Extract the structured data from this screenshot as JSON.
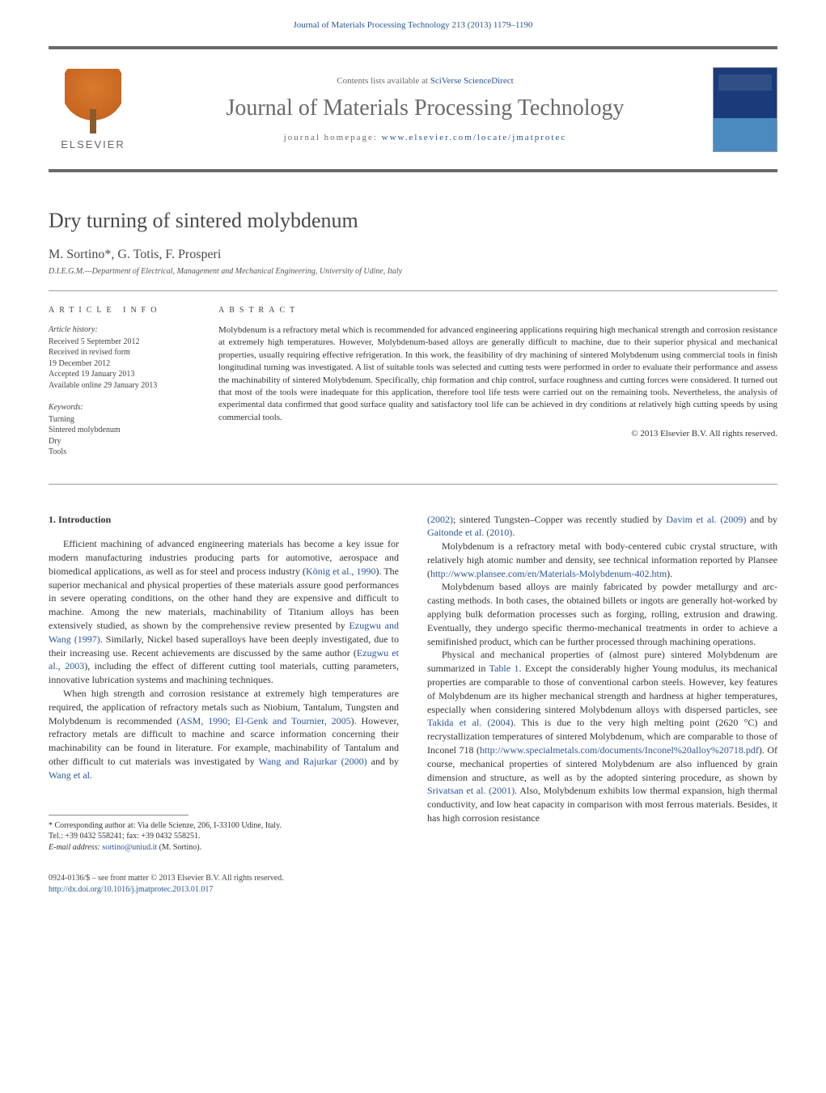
{
  "header": {
    "citation": "Journal of Materials Processing Technology 213 (2013) 1179–1190"
  },
  "masthead": {
    "publisher_name": "ELSEVIER",
    "contents_prefix": "Contents lists available at ",
    "contents_link": "SciVerse ScienceDirect",
    "journal_name": "Journal of Materials Processing Technology",
    "homepage_label": "journal homepage: ",
    "homepage_url": "www.elsevier.com/locate/jmatprotec"
  },
  "article": {
    "title": "Dry turning of sintered molybdenum",
    "authors": "M. Sortino*, G. Totis, F. Prosperi",
    "affiliation": "D.I.E.G.M.—Department of Electrical, Management and Mechanical Engineering, University of Udine, Italy"
  },
  "info": {
    "heading": "ARTICLE INFO",
    "history_label": "Article history:",
    "received": "Received 5 September 2012",
    "revised1": "Received in revised form",
    "revised2": "19 December 2012",
    "accepted": "Accepted 19 January 2013",
    "online": "Available online 29 January 2013",
    "keywords_label": "Keywords:",
    "kw1": "Turning",
    "kw2": "Sintered molybdenum",
    "kw3": "Dry",
    "kw4": "Tools"
  },
  "abstract": {
    "heading": "ABSTRACT",
    "text": "Molybdenum is a refractory metal which is recommended for advanced engineering applications requiring high mechanical strength and corrosion resistance at extremely high temperatures. However, Molybdenum-based alloys are generally difficult to machine, due to their superior physical and mechanical properties, usually requiring effective refrigeration. In this work, the feasibility of dry machining of sintered Molybdenum using commercial tools in finish longitudinal turning was investigated. A list of suitable tools was selected and cutting tests were performed in order to evaluate their performance and assess the machinability of sintered Molybdenum. Specifically, chip formation and chip control, surface roughness and cutting forces were considered. It turned out that most of the tools were inadequate for this application, therefore tool life tests were carried out on the remaining tools. Nevertheless, the analysis of experimental data confirmed that good surface quality and satisfactory tool life can be achieved in dry conditions at relatively high cutting speeds by using commercial tools.",
    "copyright": "© 2013 Elsevier B.V. All rights reserved."
  },
  "body": {
    "section_number": "1.",
    "section_title": "Introduction",
    "left_para1_a": "Efficient machining of advanced engineering materials has become a key issue for modern manufacturing industries producing parts for automotive, aerospace and biomedical applications, as well as for steel and process industry (",
    "left_para1_ref1": "König et al., 1990",
    "left_para1_b": "). The superior mechanical and physical properties of these materials assure good performances in severe operating conditions, on the other hand they are expensive and difficult to machine. Among the new materials, machinability of Titanium alloys has been extensively studied, as shown by the comprehensive review presented by ",
    "left_para1_ref2": "Ezugwu and Wang (1997)",
    "left_para1_c": ". Similarly, Nickel based superalloys have been deeply investigated, due to their increasing use. Recent achievements are discussed by the same author (",
    "left_para1_ref3": "Ezugwu et al., 2003",
    "left_para1_d": "), including the effect of different cutting tool materials, cutting parameters, innovative lubrication systems and machining techniques.",
    "left_para2_a": "When high strength and corrosion resistance at extremely high temperatures are required, the application of refractory metals such as Niobium, Tantalum, Tungsten and Molybdenum is recommended (",
    "left_para2_ref1": "ASM, 1990; El-Genk and Tournier, 2005",
    "left_para2_b": "). However, refractory metals are difficult to machine and scarce information concerning their machinability can be found in literature. For example, machinability of Tantalum and other difficult to cut materials was investigated by ",
    "left_para2_ref2": "Wang and Rajurkar (2000)",
    "left_para2_c": " and by ",
    "left_para2_ref3": "Wang et al.",
    "right_para1_a": "(2002)",
    "right_para1_b": "; sintered Tungsten–Copper was recently studied by ",
    "right_para1_ref1": "Davim et al. (2009)",
    "right_para1_c": " and by ",
    "right_para1_ref2": "Gaitonde et al. (2010)",
    "right_para1_d": ".",
    "right_para2_a": "Molybdenum is a refractory metal with body-centered cubic crystal structure, with relatively high atomic number and density, see technical information reported by Plansee (",
    "right_para2_ref1": "http://www.plansee.com/en/Materials-Molybdenum-402.htm",
    "right_para2_b": ").",
    "right_para3": "Molybdenum based alloys are mainly fabricated by powder metallurgy and arc-casting methods. In both cases, the obtained billets or ingots are generally hot-worked by applying bulk deformation processes such as forging, rolling, extrusion and drawing. Eventually, they undergo specific thermo-mechanical treatments in order to achieve a semifinished product, which can be further processed through machining operations.",
    "right_para4_a": "Physical and mechanical properties of (almost pure) sintered Molybdenum are summarized in ",
    "right_para4_ref1": "Table 1",
    "right_para4_b": ". Except the considerably higher Young modulus, its mechanical properties are comparable to those of conventional carbon steels. However, key features of Molybdenum are its higher mechanical strength and hardness at higher temperatures, especially when considering sintered Molybdenum alloys with dispersed particles, see ",
    "right_para4_ref2": "Takida et al. (2004)",
    "right_para4_c": ". This is due to the very high melting point (2620 °C) and recrystallization temperatures of sintered Molybdenum, which are comparable to those of Inconel 718 (",
    "right_para4_ref3": "http://www.specialmetals.com/documents/Inconel%20alloy%20718.pdf",
    "right_para4_d": "). Of course, mechanical properties of sintered Molybdenum are also influenced by grain dimension and structure, as well as by the adopted sintering procedure, as shown by ",
    "right_para4_ref4": "Srivatsan et al. (2001)",
    "right_para4_e": ". Also, Molybdenum exhibits low thermal expansion, high thermal conductivity, and low heat capacity in comparison with most ferrous materials. Besides, it has high corrosion resistance"
  },
  "footnote": {
    "corr_label": "* Corresponding author at: Via delle Scienze, 206, I-33100 Udine, Italy.",
    "tel": "Tel.: +39 0432 558241; fax: +39 0432 558251.",
    "email_label": "E-mail address: ",
    "email": "sortino@uniud.it",
    "email_suffix": " (M. Sortino)."
  },
  "footer": {
    "line1": "0924-0136/$ – see front matter © 2013 Elsevier B.V. All rights reserved.",
    "doi": "http://dx.doi.org/10.1016/j.jmatprotec.2013.01.017"
  }
}
